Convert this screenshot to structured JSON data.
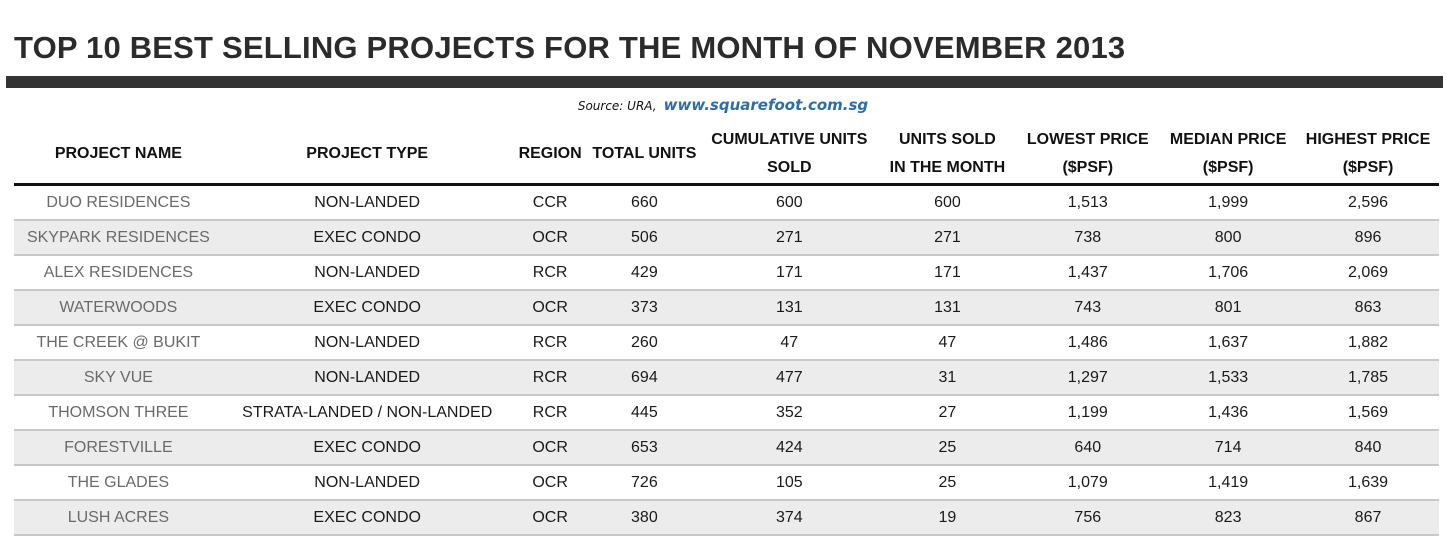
{
  "title": "TOP 10 BEST SELLING PROJECTS FOR THE MONTH OF NOVEMBER 2013",
  "source": {
    "label": "Source: URA,",
    "site": "www.squarefoot.com.sg"
  },
  "chart_data": {
    "type": "table",
    "title": "TOP 10 BEST SELLING PROJECTS FOR THE MONTH OF NOVEMBER 2013",
    "columns": [
      {
        "line1": "PROJECT NAME",
        "line2": ""
      },
      {
        "line1": "PROJECT TYPE",
        "line2": ""
      },
      {
        "line1": "REGION",
        "line2": ""
      },
      {
        "line1": "TOTAL UNITS",
        "line2": ""
      },
      {
        "line1": "CUMULATIVE UNITS",
        "line2": "SOLD"
      },
      {
        "line1": "UNITS SOLD",
        "line2": "IN THE MONTH"
      },
      {
        "line1": "LOWEST PRICE",
        "line2": "($PSF)"
      },
      {
        "line1": "MEDIAN PRICE",
        "line2": "($PSF)"
      },
      {
        "line1": "HIGHEST PRICE",
        "line2": "($PSF)"
      }
    ],
    "rows": [
      [
        "DUO RESIDENCES",
        "NON-LANDED",
        "CCR",
        "660",
        "600",
        "600",
        "1,513",
        "1,999",
        "2,596"
      ],
      [
        "SKYPARK RESIDENCES",
        "EXEC CONDO",
        "OCR",
        "506",
        "271",
        "271",
        "738",
        "800",
        "896"
      ],
      [
        "ALEX RESIDENCES",
        "NON-LANDED",
        "RCR",
        "429",
        "171",
        "171",
        "1,437",
        "1,706",
        "2,069"
      ],
      [
        "WATERWOODS",
        "EXEC CONDO",
        "OCR",
        "373",
        "131",
        "131",
        "743",
        "801",
        "863"
      ],
      [
        "THE CREEK @ BUKIT",
        "NON-LANDED",
        "RCR",
        "260",
        "47",
        "47",
        "1,486",
        "1,637",
        "1,882"
      ],
      [
        "SKY VUE",
        "NON-LANDED",
        "RCR",
        "694",
        "477",
        "31",
        "1,297",
        "1,533",
        "1,785"
      ],
      [
        "THOMSON THREE",
        "STRATA-LANDED / NON-LANDED",
        "RCR",
        "445",
        "352",
        "27",
        "1,199",
        "1,436",
        "1,569"
      ],
      [
        "FORESTVILLE",
        "EXEC CONDO",
        "OCR",
        "653",
        "424",
        "25",
        "640",
        "714",
        "840"
      ],
      [
        "THE GLADES",
        "NON-LANDED",
        "OCR",
        "726",
        "105",
        "25",
        "1,079",
        "1,419",
        "1,639"
      ],
      [
        "LUSH ACRES",
        "EXEC CONDO",
        "OCR",
        "380",
        "374",
        "19",
        "756",
        "823",
        "867"
      ]
    ]
  }
}
